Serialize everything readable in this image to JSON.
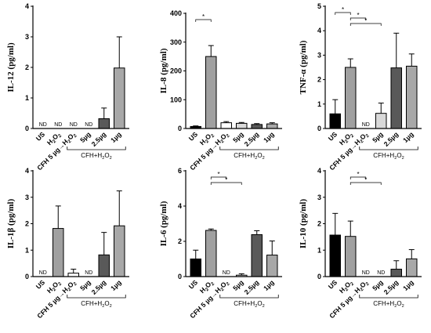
{
  "colors": {
    "US": "#000000",
    "H2O2": "#a0a0a0",
    "CFH5": "#ffffff",
    "5ug": "#d9d9d9",
    "2.5ug": "#595959",
    "1ug": "#a8a8a8"
  },
  "chart_data": [
    {
      "type": "bar",
      "ylabel": "IL-12 (pg/ml)",
      "ylim": [
        0,
        4
      ],
      "yticks": [
        0,
        1,
        2,
        3,
        4
      ],
      "categories": [
        "US",
        "H2O2",
        "CFH 5 µg→H2O2",
        "5µg",
        "2.5µg",
        "1µg"
      ],
      "values": [
        null,
        null,
        null,
        null,
        0.32,
        1.98
      ],
      "errors": [
        null,
        null,
        null,
        null,
        0.35,
        1.02
      ],
      "labels": [
        "ND",
        "ND",
        "ND",
        "ND",
        "",
        ""
      ],
      "significance": [],
      "group_label": "CFH+H2O2"
    },
    {
      "type": "bar",
      "ylabel": "IL-8 (pg/ml)",
      "ylim": [
        0,
        400
      ],
      "yticks": [
        0,
        100,
        200,
        300,
        400
      ],
      "categories": [
        "US",
        "H2O2",
        "CFH 5 µg→H2O2",
        "5µg",
        "2.5µg",
        "1µg"
      ],
      "values": [
        7,
        250,
        20,
        18,
        14,
        16
      ],
      "errors": [
        2,
        38,
        4,
        3,
        3,
        4
      ],
      "labels": [
        "",
        "",
        "",
        "",
        "",
        ""
      ],
      "significance": [
        {
          "from": 0,
          "to": 1,
          "label": "*"
        }
      ],
      "group_label": "CFH+H2O2"
    },
    {
      "type": "bar",
      "ylabel": "TNF-α (pg/ml)",
      "ylim": [
        0,
        5
      ],
      "yticks": [
        0,
        1,
        2,
        3,
        4,
        5
      ],
      "categories": [
        "US",
        "H2O2",
        "CFH 5 µg→H2O2",
        "5µg",
        "2.5µg",
        "1µg"
      ],
      "values": [
        0.6,
        2.5,
        null,
        0.62,
        2.48,
        2.55
      ],
      "errors": [
        0.58,
        0.35,
        null,
        0.42,
        1.42,
        0.5
      ],
      "labels": [
        "",
        "",
        "ND",
        "",
        "",
        ""
      ],
      "significance": [
        {
          "from": 0,
          "to": 1,
          "label": "*"
        },
        {
          "from": 1,
          "to": 2,
          "label": "*"
        },
        {
          "from": 1,
          "to": 3,
          "label": "*"
        }
      ],
      "group_label": "CFH+H2O2"
    },
    {
      "type": "bar",
      "ylabel": "IL-1β (pg/ml)",
      "ylim": [
        0,
        4
      ],
      "yticks": [
        0,
        1,
        2,
        3,
        4
      ],
      "categories": [
        "US",
        "H2O2",
        "CFH 5 µg→H2O2",
        "5µg",
        "2.5µg",
        "1µg"
      ],
      "values": [
        null,
        1.82,
        0.13,
        null,
        0.82,
        1.92
      ],
      "errors": [
        null,
        0.85,
        0.15,
        null,
        0.85,
        1.32
      ],
      "labels": [
        "ND",
        "",
        "",
        "ND",
        "",
        ""
      ],
      "significance": [],
      "group_label": "CFH+H2O2"
    },
    {
      "type": "bar",
      "ylabel": "IL-6 (pg/ml)",
      "ylim": [
        0,
        6
      ],
      "yticks": [
        0,
        2,
        4,
        6
      ],
      "categories": [
        "US",
        "H2O2",
        "CFH 5 µg→H2O2",
        "5µg",
        "2.5µg",
        "1µg"
      ],
      "values": [
        1.0,
        2.62,
        null,
        0.08,
        2.38,
        1.22
      ],
      "errors": [
        0.5,
        0.08,
        null,
        0.08,
        0.22,
        0.8
      ],
      "labels": [
        "",
        "",
        "ND",
        "",
        "",
        ""
      ],
      "significance": [
        {
          "from": 1,
          "to": 2,
          "label": "*"
        },
        {
          "from": 1,
          "to": 3,
          "label": "*"
        }
      ],
      "group_label": "CFH+H2O2"
    },
    {
      "type": "bar",
      "ylabel": "IL-10 (pg/ml)",
      "ylim": [
        0,
        4
      ],
      "yticks": [
        0,
        1,
        2,
        3,
        4
      ],
      "categories": [
        "US",
        "H2O2",
        "CFH 5 µg→H2O2",
        "5µg",
        "2.5µg",
        "1µg"
      ],
      "values": [
        1.57,
        1.52,
        null,
        null,
        0.28,
        0.67
      ],
      "errors": [
        0.82,
        0.58,
        null,
        null,
        0.32,
        0.35
      ],
      "labels": [
        "",
        "",
        "ND",
        "ND",
        "",
        ""
      ],
      "significance": [
        {
          "from": 1,
          "to": 2,
          "label": "*"
        },
        {
          "from": 1,
          "to": 3,
          "label": "*"
        }
      ],
      "group_label": "CFH+H2O2"
    }
  ]
}
